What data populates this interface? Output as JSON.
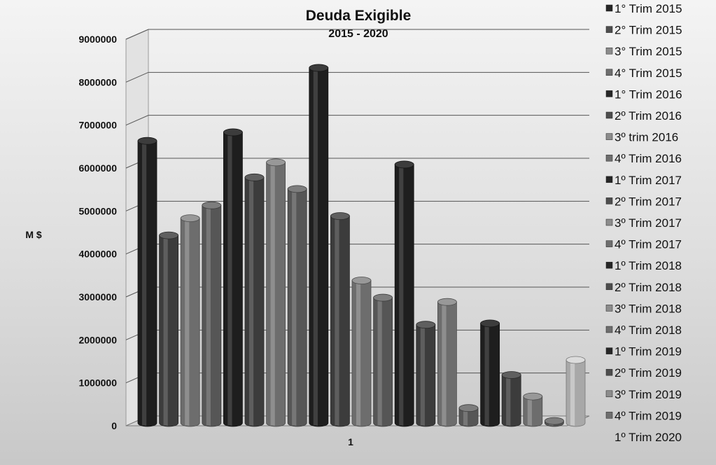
{
  "chart_data": {
    "type": "bar",
    "title": "Deuda Exigible",
    "subtitle": "2015 - 2020",
    "ylabel": "M $",
    "xlabel": "",
    "categories": [
      "1"
    ],
    "ylim": [
      0,
      9000000
    ],
    "yticks": [
      0,
      1000000,
      2000000,
      3000000,
      4000000,
      5000000,
      6000000,
      7000000,
      8000000,
      9000000
    ],
    "ytick_labels": [
      "0",
      "1000000",
      "2000000",
      "3000000",
      "4000000",
      "5000000",
      "6000000",
      "7000000",
      "8000000",
      "9000000"
    ],
    "grid": true,
    "legend_position": "right",
    "three_d": true,
    "series": [
      {
        "name": "1° Trim 2015",
        "values": [
          6600000
        ],
        "color": "#262626"
      },
      {
        "name": "2° Trim 2015",
        "values": [
          4400000
        ],
        "color": "#4d4d4d"
      },
      {
        "name": "3° Trim 2015",
        "values": [
          4800000
        ],
        "color": "#8c8c8c"
      },
      {
        "name": "4° Trim 2015",
        "values": [
          5100000
        ],
        "color": "#6e6e6e"
      },
      {
        "name": "1° Trim 2016",
        "values": [
          6800000
        ],
        "color": "#262626"
      },
      {
        "name": "2º Trim 2016",
        "values": [
          5750000
        ],
        "color": "#4d4d4d"
      },
      {
        "name": "3º trim 2016",
        "values": [
          6100000
        ],
        "color": "#8c8c8c"
      },
      {
        "name": "4º Trim 2016",
        "values": [
          5480000
        ],
        "color": "#6e6e6e"
      },
      {
        "name": "1º Trim 2017",
        "values": [
          8300000
        ],
        "color": "#262626"
      },
      {
        "name": "2º Trim 2017",
        "values": [
          4850000
        ],
        "color": "#4d4d4d"
      },
      {
        "name": "3º Trim 2017",
        "values": [
          3350000
        ],
        "color": "#8c8c8c"
      },
      {
        "name": "4º Trim 2017",
        "values": [
          2950000
        ],
        "color": "#6e6e6e"
      },
      {
        "name": "1º Trim 2018",
        "values": [
          6050000
        ],
        "color": "#262626"
      },
      {
        "name": "2º Trim 2018",
        "values": [
          2320000
        ],
        "color": "#4d4d4d"
      },
      {
        "name": "3º Trim 2018",
        "values": [
          2850000
        ],
        "color": "#8c8c8c"
      },
      {
        "name": "4º Trim 2018",
        "values": [
          380000
        ],
        "color": "#6e6e6e"
      },
      {
        "name": "1º Trim 2019",
        "values": [
          2350000
        ],
        "color": "#262626"
      },
      {
        "name": "2º Trim 2019",
        "values": [
          1150000
        ],
        "color": "#4d4d4d"
      },
      {
        "name": "3º Trim 2019",
        "values": [
          650000
        ],
        "color": "#8c8c8c"
      },
      {
        "name": "4º Trim 2019",
        "values": [
          80000
        ],
        "color": "#6e6e6e"
      },
      {
        "name": "1º Trim 2020",
        "values": [
          1500000
        ],
        "color": "#d8d8d8"
      }
    ]
  }
}
